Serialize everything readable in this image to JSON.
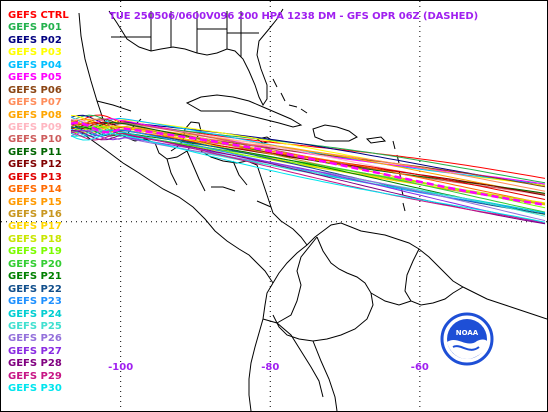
{
  "title": "TUE 250506/0600V096  200 HPA 1238 DM - GFS OPR 06Z (DASHED)",
  "legend": [
    {
      "label": "GEFS CTRL",
      "color": "#ff0000"
    },
    {
      "label": "GEFS P01",
      "color": "#22b14c"
    },
    {
      "label": "GEFS P02",
      "color": "#000080"
    },
    {
      "label": "GEFS P03",
      "color": "#ffff00"
    },
    {
      "label": "GEFS P04",
      "color": "#00bfff"
    },
    {
      "label": "GEFS P05",
      "color": "#ff00ff"
    },
    {
      "label": "GEFS P06",
      "color": "#8b4513"
    },
    {
      "label": "GEFS P07",
      "color": "#ff8c5a"
    },
    {
      "label": "GEFS P08",
      "color": "#ffa500"
    },
    {
      "label": "GEFS P09",
      "color": "#ffb6c1"
    },
    {
      "label": "GEFS P10",
      "color": "#cd5c5c"
    },
    {
      "label": "GEFS P11",
      "color": "#006400"
    },
    {
      "label": "GEFS P12",
      "color": "#800000"
    },
    {
      "label": "GEFS P13",
      "color": "#e00000"
    },
    {
      "label": "GEFS P14",
      "color": "#ff6a00"
    },
    {
      "label": "GEFS P15",
      "color": "#ff9a00"
    },
    {
      "label": "GEFS P16",
      "color": "#c8961e"
    },
    {
      "label": "GEFS P17",
      "color": "#ffd700"
    },
    {
      "label": "GEFS P18",
      "color": "#c8e600"
    },
    {
      "label": "GEFS P19",
      "color": "#7cfc00"
    },
    {
      "label": "GEFS P20",
      "color": "#32cd32"
    },
    {
      "label": "GEFS P21",
      "color": "#008000"
    },
    {
      "label": "GEFS P22",
      "color": "#104e8b"
    },
    {
      "label": "GEFS P23",
      "color": "#1e90ff"
    },
    {
      "label": "GEFS P24",
      "color": "#00ced1"
    },
    {
      "label": "GEFS P25",
      "color": "#40e0d0"
    },
    {
      "label": "GEFS P26",
      "color": "#9370db"
    },
    {
      "label": "GEFS P27",
      "color": "#8a2be2"
    },
    {
      "label": "GEFS P28",
      "color": "#800080"
    },
    {
      "label": "GEFS P29",
      "color": "#c71585"
    },
    {
      "label": "GEFS P30",
      "color": "#00e5ee"
    }
  ],
  "x_ticks": [
    {
      "label": "-100",
      "lon": -100
    },
    {
      "label": "-80",
      "lon": -80
    },
    {
      "label": "-60",
      "lon": -60
    }
  ],
  "map": {
    "lon_range": [
      -116,
      -43
    ],
    "lat_range": [
      2,
      41
    ],
    "parallels_dotted": [
      20
    ],
    "meridians_dotted": [
      -100,
      -80,
      -60
    ]
  },
  "colors": {
    "title": "#a020f0",
    "operational": "#ff00ff",
    "noaa_blue": "#1e4fd6"
  },
  "logo": {
    "text": "NOAA",
    "icon": "noaa-logo-icon"
  }
}
